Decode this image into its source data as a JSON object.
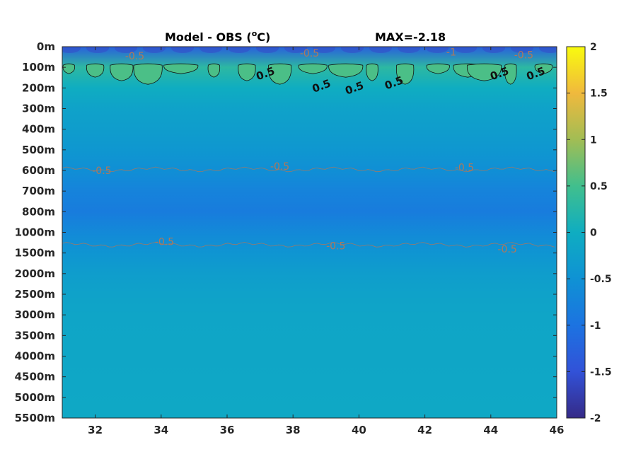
{
  "chart_data": {
    "type": "heatmap",
    "title": "Model - OBS (oC)",
    "title_parts": {
      "text": "Model - OBS (",
      "superscript": "o",
      "unit": "C)"
    },
    "annotation": "MAX=-2.18",
    "x": {
      "ticks": [
        32,
        34,
        36,
        38,
        40,
        42,
        44,
        46
      ],
      "lim": [
        31,
        46
      ]
    },
    "y": {
      "tick_labels": [
        "0m",
        "100m",
        "200m",
        "300m",
        "400m",
        "500m",
        "600m",
        "700m",
        "800m",
        "1000m",
        "1500m",
        "2000m",
        "2500m",
        "3000m",
        "3500m",
        "4000m",
        "4500m",
        "5000m",
        "5500m"
      ],
      "reversed": true
    },
    "colorbar": {
      "lim": [
        -2,
        2
      ],
      "ticks": [
        "2",
        "1.5",
        "1",
        "0.5",
        "0",
        "-0.5",
        "-1",
        "-1.5",
        "-2"
      ],
      "colormap": "parula"
    },
    "field_rows": [
      {
        "depth": "0m",
        "value": -1.3
      },
      {
        "depth": "100m",
        "value": 0.3
      },
      {
        "depth": "200m",
        "value": 0.0
      },
      {
        "depth": "300m",
        "value": -0.2
      },
      {
        "depth": "400m",
        "value": -0.3
      },
      {
        "depth": "500m",
        "value": -0.4
      },
      {
        "depth": "600m",
        "value": -0.55
      },
      {
        "depth": "700m",
        "value": -0.75
      },
      {
        "depth": "800m",
        "value": -0.85
      },
      {
        "depth": "1000m",
        "value": -0.65
      },
      {
        "depth": "1500m",
        "value": -0.45
      },
      {
        "depth": "2000m",
        "value": -0.3
      },
      {
        "depth": "2500m",
        "value": -0.2
      },
      {
        "depth": "3000m",
        "value": -0.15
      },
      {
        "depth": "5500m",
        "value": -0.1
      }
    ],
    "contour_labels": [
      {
        "text": "-0.5",
        "x": 33.2,
        "depth_index": 0.45
      },
      {
        "text": "-0.5",
        "x": 38.5,
        "depth_index": 0.3
      },
      {
        "text": "-1",
        "x": 42.8,
        "depth_index": 0.25
      },
      {
        "text": "-0.5",
        "x": 45.0,
        "depth_index": 0.4
      },
      {
        "text": "0.5",
        "x": 37.2,
        "depth_index": 1.3
      },
      {
        "text": "0.5",
        "x": 38.9,
        "depth_index": 1.9
      },
      {
        "text": "0.5",
        "x": 39.9,
        "depth_index": 2.0
      },
      {
        "text": "0.5",
        "x": 41.1,
        "depth_index": 1.75
      },
      {
        "text": "0.5",
        "x": 44.3,
        "depth_index": 1.3
      },
      {
        "text": "0.5",
        "x": 45.4,
        "depth_index": 1.3
      },
      {
        "text": "-0.5",
        "x": 32.2,
        "depth_index": 6.0
      },
      {
        "text": "-0.5",
        "x": 37.6,
        "depth_index": 5.8
      },
      {
        "text": "-0.5",
        "x": 43.2,
        "depth_index": 5.85
      },
      {
        "text": "-0.5",
        "x": 34.1,
        "depth_index": 9.45
      },
      {
        "text": "-0.5",
        "x": 39.3,
        "depth_index": 9.65
      },
      {
        "text": "-0.5",
        "x": 44.5,
        "depth_index": 9.8
      }
    ],
    "positive_blobs": [
      31.2,
      32.0,
      32.8,
      33.6,
      34.6,
      35.6,
      36.6,
      37.6,
      38.6,
      39.6,
      40.4,
      41.4,
      42.4,
      43.3,
      43.8,
      44.6,
      45.6
    ],
    "grid": false
  }
}
